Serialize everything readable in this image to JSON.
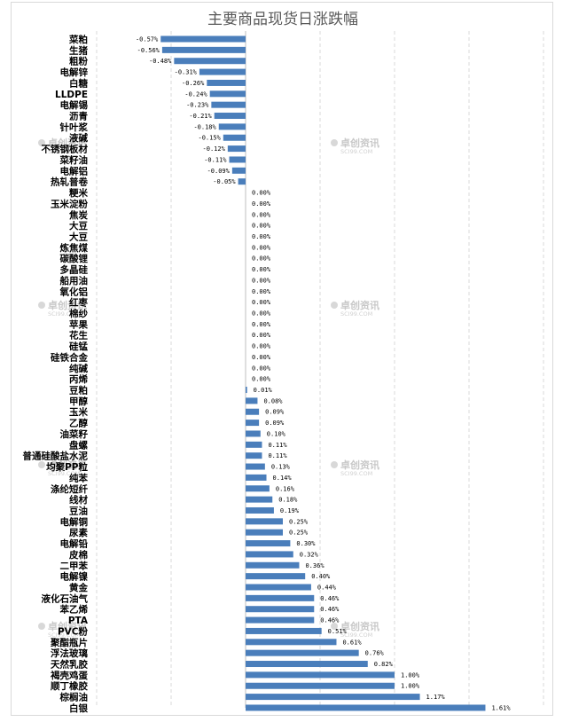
{
  "chart_data": {
    "type": "bar",
    "orientation": "horizontal",
    "title": "主要商品现货日涨跌幅",
    "categories": [
      "菜粕",
      "生猪",
      "粗粉",
      "电解锌",
      "白糖",
      "LLDPE",
      "电解锡",
      "沥青",
      "针叶浆",
      "液碱",
      "不锈钢板材",
      "菜籽油",
      "电解铝",
      "热轧普卷",
      "粳米",
      "玉米淀粉",
      "焦炭",
      "大豆",
      "大豆",
      "炼焦煤",
      "碳酸锂",
      "多晶硅",
      "船用油",
      "氧化铝",
      "红枣",
      "棉纱",
      "苹果",
      "花生",
      "硅锰",
      "硅铁合金",
      "纯碱",
      "丙烯",
      "豆粕",
      "甲醇",
      "玉米",
      "乙醇",
      "油菜籽",
      "盘螺",
      "普通硅酸盐水泥",
      "均聚PP粒",
      "纯苯",
      "涤纶短纤",
      "线材",
      "豆油",
      "电解铜",
      "尿素",
      "电解铅",
      "皮棉",
      "二甲苯",
      "电解镍",
      "黄金",
      "液化石油气",
      "苯乙烯",
      "PTA",
      "PVC粉",
      "聚酯瓶片",
      "浮法玻璃",
      "天然乳胶",
      "褐壳鸡蛋",
      "顺丁橡胶",
      "棕榈油",
      "白银"
    ],
    "values": [
      -0.57,
      -0.56,
      -0.48,
      -0.31,
      -0.26,
      -0.24,
      -0.23,
      -0.21,
      -0.18,
      -0.15,
      -0.12,
      -0.11,
      -0.09,
      -0.05,
      0,
      0,
      0,
      0,
      0,
      0,
      0,
      0,
      0,
      0,
      0,
      0,
      0,
      0,
      0,
      0,
      0,
      0,
      0.01,
      0.08,
      0.09,
      0.09,
      0.1,
      0.11,
      0.11,
      0.13,
      0.14,
      0.16,
      0.18,
      0.19,
      0.25,
      0.25,
      0.3,
      0.32,
      0.36,
      0.4,
      0.44,
      0.46,
      0.46,
      0.46,
      0.51,
      0.61,
      0.76,
      0.82,
      1.0,
      1.0,
      1.17,
      1.61
    ],
    "data_labels": [
      "-0.57%",
      "-0.56%",
      "-0.48%",
      "-0.31%",
      "-0.26%",
      "-0.24%",
      "-0.23%",
      "-0.21%",
      "-0.18%",
      "-0.15%",
      "-0.12%",
      "-0.11%",
      "-0.09%",
      "-0.05%",
      "0.00%",
      "0.00%",
      "0.00%",
      "0.00%",
      "0.00%",
      "0.00%",
      "0.00%",
      "0.00%",
      "0.00%",
      "0.00%",
      "0.00%",
      "0.00%",
      "0.00%",
      "0.00%",
      "0.00%",
      "0.00%",
      "0.00%",
      "0.00%",
      "0.01%",
      "0.08%",
      "0.09%",
      "0.09%",
      "0.10%",
      "0.11%",
      "0.11%",
      "0.13%",
      "0.14%",
      "0.16%",
      "0.18%",
      "0.19%",
      "0.25%",
      "0.25%",
      "0.30%",
      "0.32%",
      "0.36%",
      "0.40%",
      "0.44%",
      "0.46%",
      "0.46%",
      "0.46%",
      "0.51%",
      "0.61%",
      "0.76%",
      "0.82%",
      "1.00%",
      "1.00%",
      "1.17%",
      "1.61%"
    ],
    "unit": "%",
    "xlim": [
      -1.0,
      2.0
    ],
    "grid": "vertical dashed",
    "bar_color": "#4a7ebb",
    "legend": "none",
    "watermark": {
      "name": "卓创资讯",
      "site": "SCI99.COM"
    }
  }
}
